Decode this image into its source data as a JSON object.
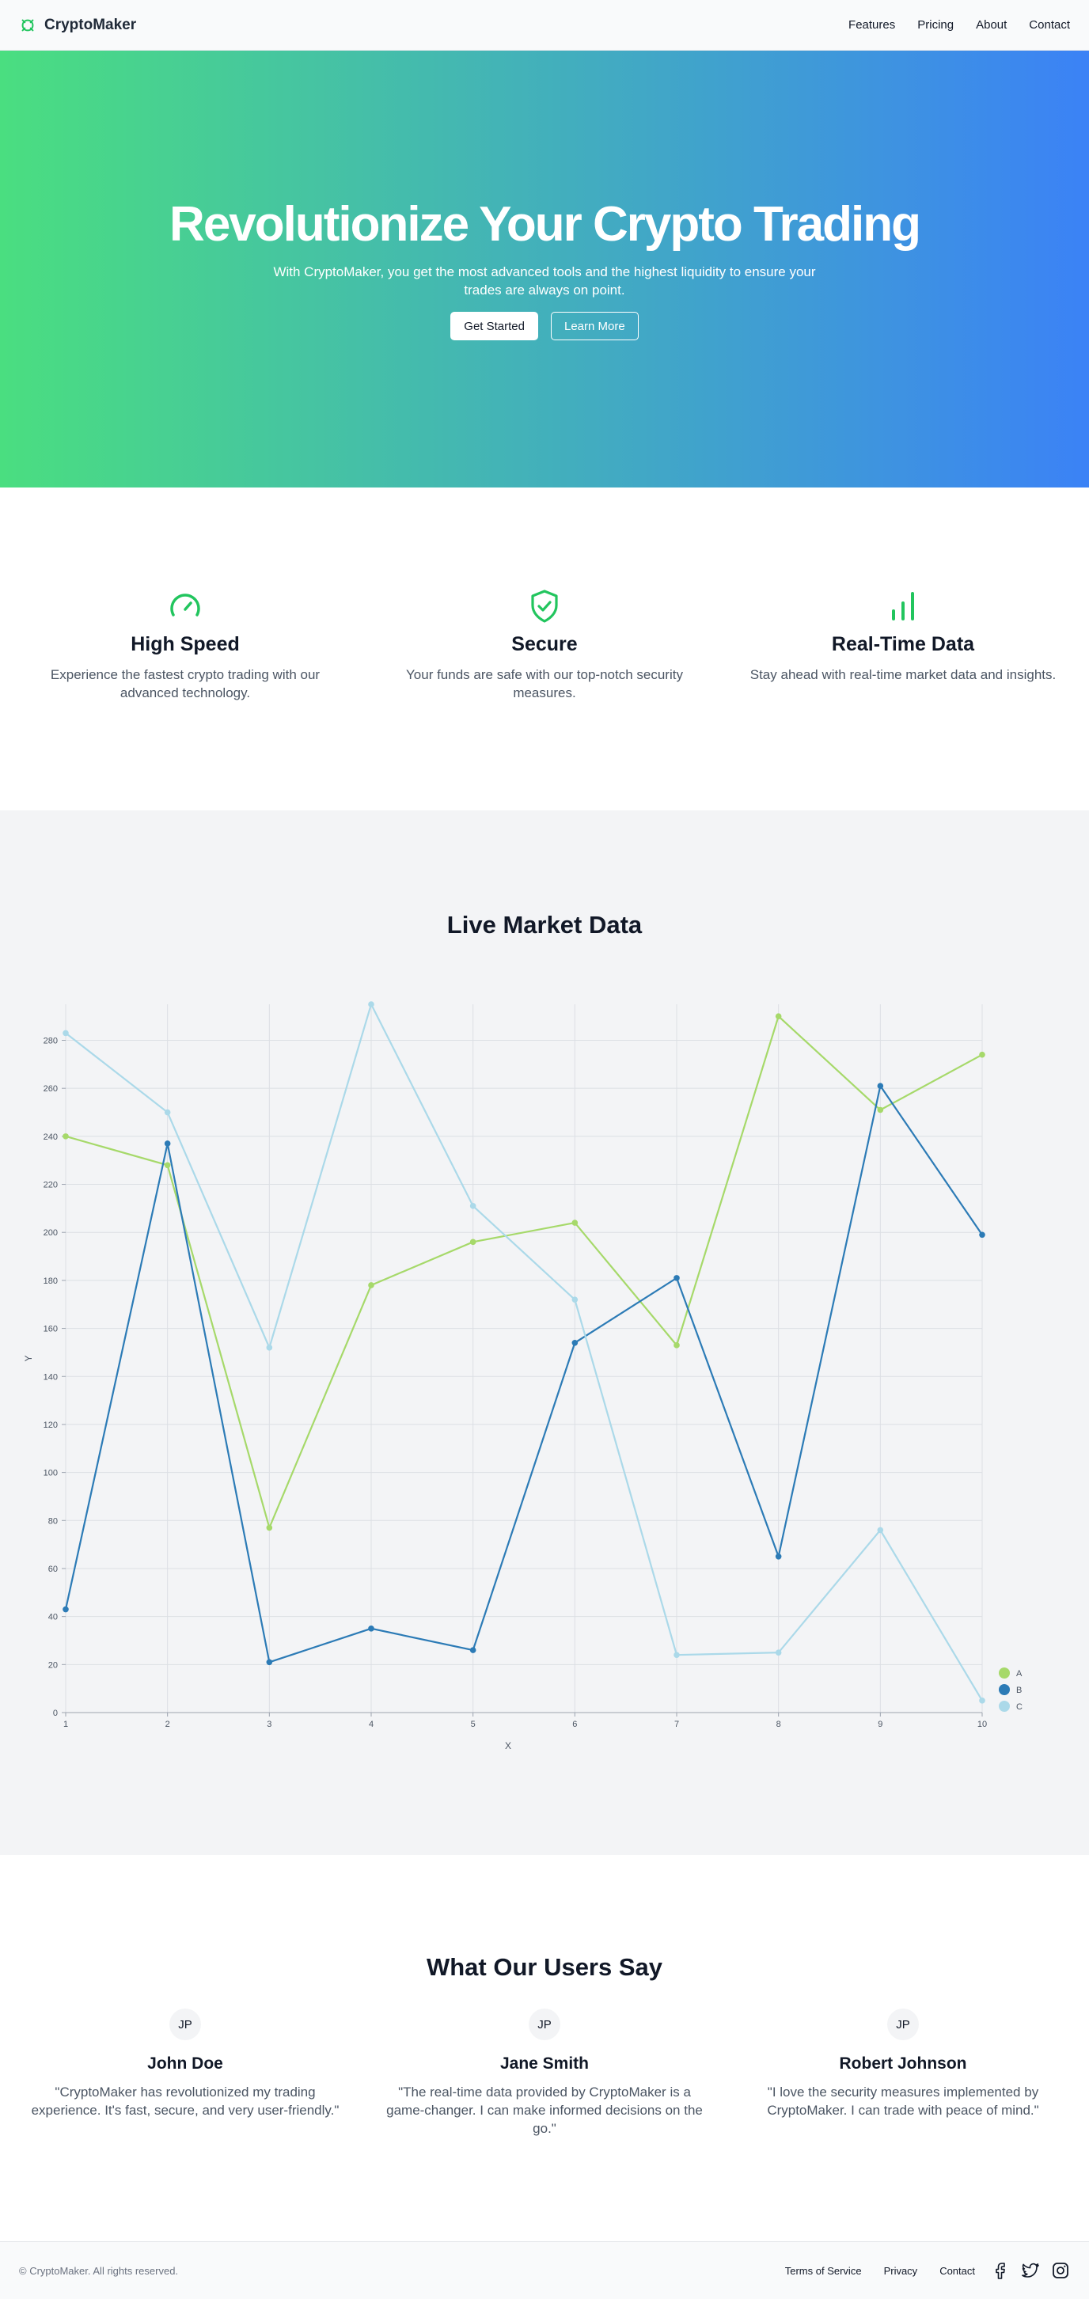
{
  "header": {
    "brand": "CryptoMaker",
    "logo_icon": "bitcoin-ring-icon",
    "nav": [
      "Features",
      "Pricing",
      "About",
      "Contact"
    ]
  },
  "hero": {
    "title": "Revolutionize Your Crypto Trading",
    "subtitle": "With CryptoMaker, you get the most advanced tools and the highest liquidity to ensure your trades are always on point.",
    "primary_button": "Get Started",
    "secondary_button": "Learn More",
    "gradient": [
      "#4ade80",
      "#3b82f6"
    ]
  },
  "features": [
    {
      "icon": "gauge-icon",
      "title": "High Speed",
      "description": "Experience the fastest crypto trading with our advanced technology."
    },
    {
      "icon": "shield-check-icon",
      "title": "Secure",
      "description": "Your funds are safe with our top-notch security measures."
    },
    {
      "icon": "bar-chart-icon",
      "title": "Real-Time Data",
      "description": "Stay ahead with real-time market data and insights."
    }
  ],
  "market": {
    "title": "Live Market Data"
  },
  "chart_data": {
    "type": "line",
    "x": [
      1,
      2,
      3,
      4,
      5,
      6,
      7,
      8,
      9,
      10
    ],
    "xlabel": "X",
    "ylabel": "Y",
    "xlim": [
      1,
      10
    ],
    "ylim": [
      0,
      295
    ],
    "yticks": [
      0,
      20,
      40,
      60,
      80,
      100,
      120,
      140,
      160,
      180,
      200,
      220,
      240,
      260,
      280
    ],
    "grid": true,
    "legend_position": "bottom-right",
    "series": [
      {
        "name": "A",
        "color": "#a6d96a",
        "values": [
          240,
          228,
          77,
          178,
          196,
          204,
          153,
          290,
          251,
          274
        ]
      },
      {
        "name": "B",
        "color": "#2c7bb6",
        "values": [
          43,
          237,
          21,
          35,
          26,
          154,
          181,
          65,
          261,
          199
        ]
      },
      {
        "name": "C",
        "color": "#abd9e9",
        "values": [
          283,
          250,
          152,
          295,
          211,
          172,
          24,
          25,
          76,
          5
        ]
      }
    ]
  },
  "testimonials": {
    "title": "What Our Users Say",
    "items": [
      {
        "initials": "JP",
        "name": "John Doe",
        "quote": "\"CryptoMaker has revolutionized my trading experience. It's fast, secure, and very user-friendly.\""
      },
      {
        "initials": "JP",
        "name": "Jane Smith",
        "quote": "\"The real-time data provided by CryptoMaker is a game-changer. I can make informed decisions on the go.\""
      },
      {
        "initials": "JP",
        "name": "Robert Johnson",
        "quote": "\"I love the security measures implemented by CryptoMaker. I can trade with peace of mind.\""
      }
    ]
  },
  "footer": {
    "copyright": "© CryptoMaker. All rights reserved.",
    "links": [
      "Terms of Service",
      "Privacy",
      "Contact"
    ],
    "social_icons": [
      "facebook-icon",
      "twitter-icon",
      "instagram-icon"
    ]
  }
}
